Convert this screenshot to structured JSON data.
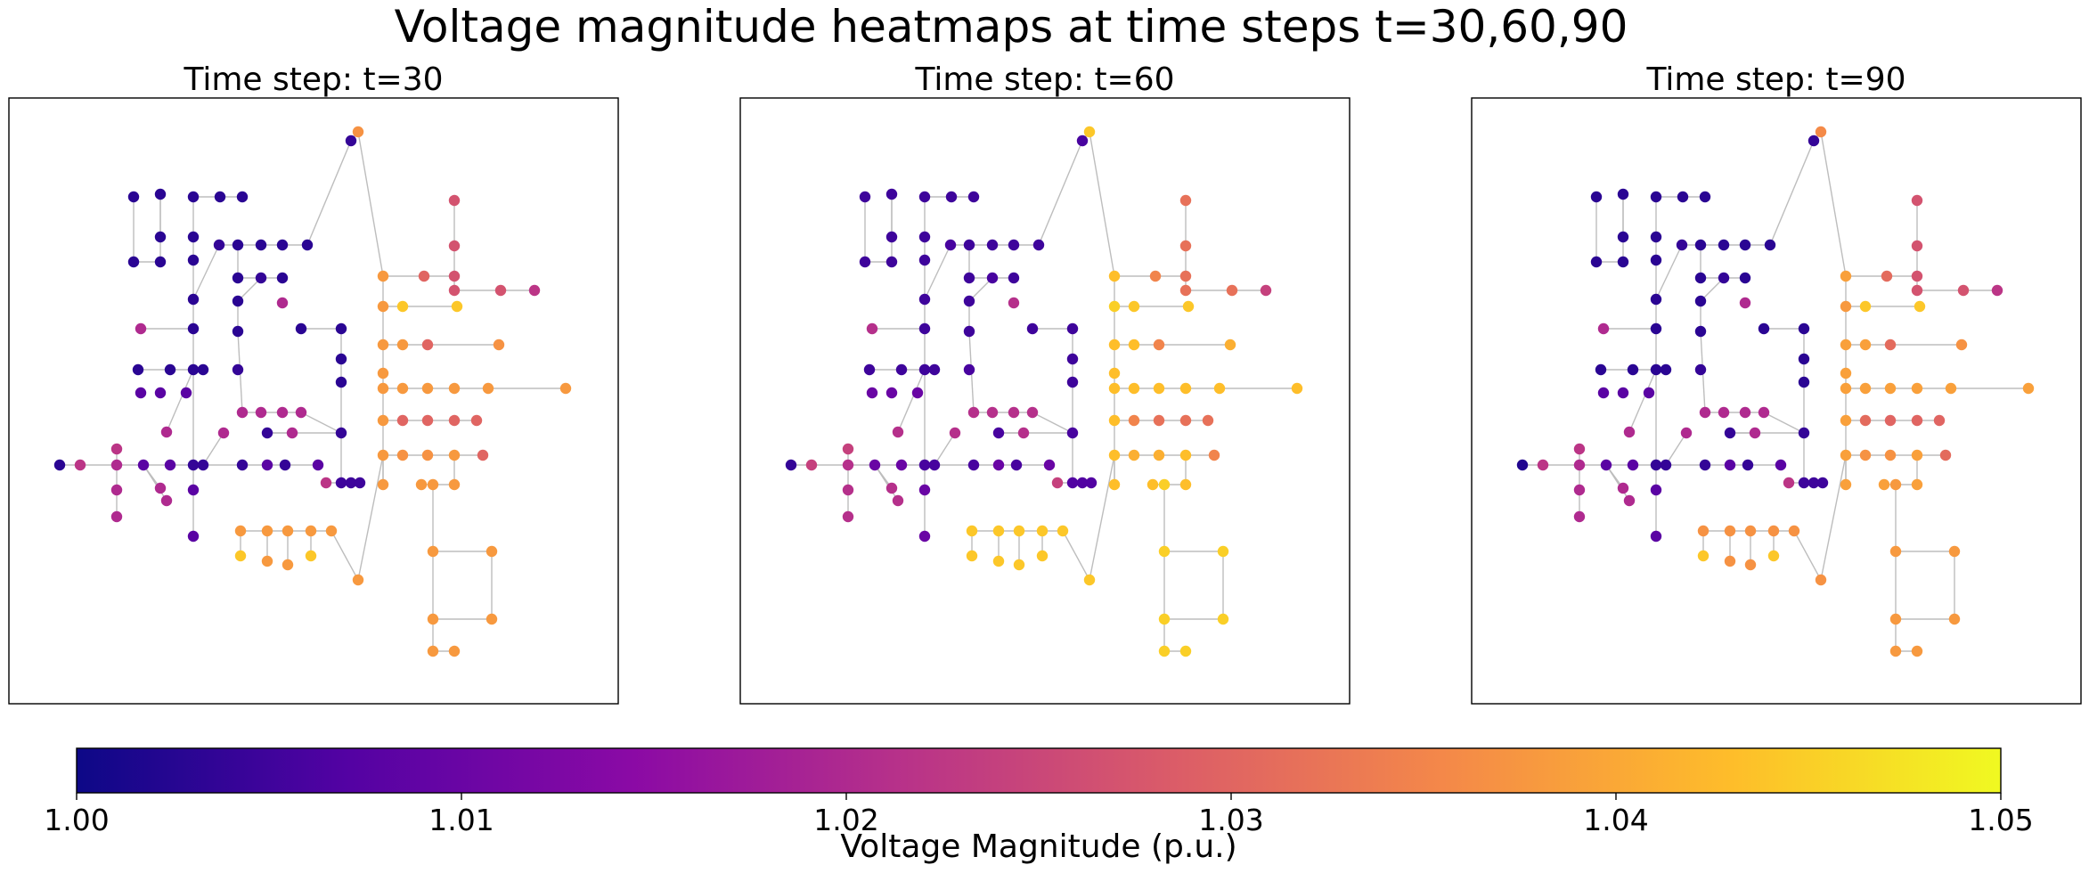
{
  "chart_data": {
    "type": "heatmap",
    "title": "Voltage magnitude heatmaps at time steps t=30,60,90",
    "colorbar": {
      "label": "Voltage Magnitude (p.u.)",
      "colormap": "plasma",
      "range": [
        1.0,
        1.05
      ],
      "ticks": [
        "1.00",
        "1.01",
        "1.02",
        "1.03",
        "1.04",
        "1.05"
      ],
      "stops": [
        "#0d0887",
        "#5302a3",
        "#8b0aa5",
        "#b83289",
        "#db5c68",
        "#f48849",
        "#febd2a",
        "#f0f921"
      ]
    },
    "panels": [
      {
        "title": "Time step: t=30",
        "zone_values": {
          "wa": 1.003,
          "wb": 1.004,
          "wc": 1.02,
          "wd": 1.008,
          "sc": 1.037,
          "sa": 1.038,
          "sb": 1.044,
          "ea": 1.038,
          "eb": 1.03,
          "ec": 1.037,
          "ed": 1.027,
          "em": 1.03,
          "ex": 1.022,
          "fa": 1.038,
          "bb": 1.005,
          "bw": 1.003
        }
      },
      {
        "title": "Time step: t=60",
        "zone_values": {
          "wa": 1.005,
          "wb": 1.006,
          "wc": 1.021,
          "wd": 1.01,
          "sc": 1.044,
          "sa": 1.044,
          "sb": 1.044,
          "ea": 1.043,
          "eb": 1.035,
          "ec": 1.041,
          "ed": 1.032,
          "em": 1.032,
          "ex": 1.024,
          "fa": 1.045,
          "bb": 1.007,
          "bw": 1.004
        }
      },
      {
        "title": "Time step: t=90",
        "zone_values": {
          "wa": 1.003,
          "wb": 1.004,
          "wc": 1.02,
          "wd": 1.008,
          "sc": 1.036,
          "sa": 1.037,
          "sb": 1.044,
          "ea": 1.039,
          "eb": 1.031,
          "ec": 1.037,
          "ed": 1.027,
          "em": 1.03,
          "ex": 1.022,
          "fa": 1.038,
          "bb": 1.005,
          "bw": 1.002
        }
      }
    ]
  }
}
